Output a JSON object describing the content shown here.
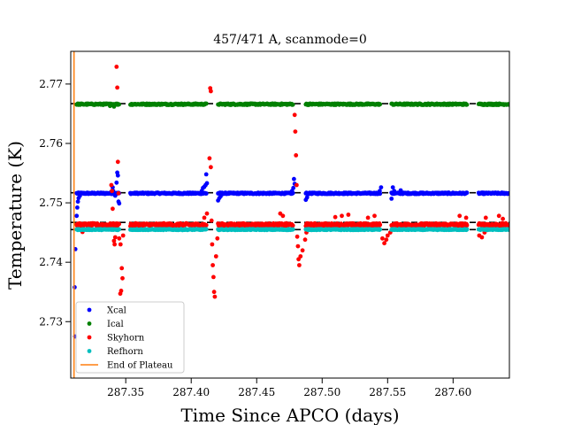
{
  "chart_data": {
    "type": "scatter",
    "title": "457/471 A, scanmode=0",
    "xlabel": "Time Since APCO (days)",
    "ylabel": "Temperature (K)",
    "xlim": [
      287.308,
      287.643
    ],
    "ylim": [
      2.7205,
      2.7755
    ],
    "xticks": [
      287.35,
      287.4,
      287.45,
      287.5,
      287.55,
      287.6
    ],
    "xtick_labels": [
      "287.35",
      "287.40",
      "287.45",
      "287.50",
      "287.55",
      "287.60"
    ],
    "yticks": [
      2.73,
      2.74,
      2.75,
      2.76,
      2.77
    ],
    "ytick_labels": [
      "2.73",
      "2.74",
      "2.75",
      "2.76",
      "2.77"
    ],
    "grid": false,
    "legend_position": "lower-left",
    "plateau_segments": [
      [
        287.3125,
        287.345
      ],
      [
        287.3535,
        287.412
      ],
      [
        287.4205,
        287.478
      ],
      [
        287.4875,
        287.5445
      ],
      [
        287.553,
        287.611
      ],
      [
        287.6195,
        287.643
      ]
    ],
    "reference_lines": [
      2.7667,
      2.7517,
      2.7467,
      2.7455
    ],
    "end_of_plateau_x": 287.3105,
    "series": [
      {
        "name": "Xcal",
        "color": "#0000ff",
        "level": 2.7516,
        "noise": 0.00012,
        "spikes": [
          {
            "x": 287.3115,
            "y": 2.7422
          },
          {
            "x": 287.311,
            "y": 2.7358
          },
          {
            "x": 287.3113,
            "y": 2.7275
          },
          {
            "x": 287.3125,
            "y": 2.7478
          },
          {
            "x": 287.313,
            "y": 2.7492
          },
          {
            "x": 287.3135,
            "y": 2.7502
          },
          {
            "x": 287.314,
            "y": 2.7508
          },
          {
            "x": 287.315,
            "y": 2.7512
          },
          {
            "x": 287.3395,
            "y": 2.752
          },
          {
            "x": 287.34,
            "y": 2.7526
          },
          {
            "x": 287.3405,
            "y": 2.752
          },
          {
            "x": 287.342,
            "y": 2.7512
          },
          {
            "x": 287.343,
            "y": 2.7534
          },
          {
            "x": 287.3435,
            "y": 2.7551
          },
          {
            "x": 287.344,
            "y": 2.7546
          },
          {
            "x": 287.3445,
            "y": 2.7502
          },
          {
            "x": 287.345,
            "y": 2.7499
          },
          {
            "x": 287.408,
            "y": 2.752
          },
          {
            "x": 287.409,
            "y": 2.7525
          },
          {
            "x": 287.41,
            "y": 2.7527
          },
          {
            "x": 287.411,
            "y": 2.753
          },
          {
            "x": 287.4115,
            "y": 2.7548
          },
          {
            "x": 287.412,
            "y": 2.7533
          },
          {
            "x": 287.4205,
            "y": 2.7504
          },
          {
            "x": 287.4215,
            "y": 2.7508
          },
          {
            "x": 287.4225,
            "y": 2.7511
          },
          {
            "x": 287.477,
            "y": 2.752
          },
          {
            "x": 287.478,
            "y": 2.7525
          },
          {
            "x": 287.4785,
            "y": 2.754
          },
          {
            "x": 287.479,
            "y": 2.7532
          },
          {
            "x": 287.4875,
            "y": 2.7505
          },
          {
            "x": 287.4885,
            "y": 2.7509
          },
          {
            "x": 287.544,
            "y": 2.752
          },
          {
            "x": 287.545,
            "y": 2.7526
          },
          {
            "x": 287.553,
            "y": 2.7507
          },
          {
            "x": 287.554,
            "y": 2.7526
          },
          {
            "x": 287.555,
            "y": 2.752
          },
          {
            "x": 287.56,
            "y": 2.7521
          }
        ]
      },
      {
        "name": "Ical",
        "color": "#008000",
        "level": 2.7666,
        "noise": 0.00012,
        "spikes": [
          {
            "x": 287.338,
            "y": 2.7663
          },
          {
            "x": 287.341,
            "y": 2.7662
          }
        ]
      },
      {
        "name": "Skyhorn",
        "color": "#ff0000",
        "level": 2.7463,
        "noise": 0.00025,
        "spikes": [
          {
            "x": 287.316,
            "y": 2.7455
          },
          {
            "x": 287.317,
            "y": 2.7451
          },
          {
            "x": 287.339,
            "y": 2.753
          },
          {
            "x": 287.3395,
            "y": 2.752
          },
          {
            "x": 287.34,
            "y": 2.749
          },
          {
            "x": 287.341,
            "y": 2.7436
          },
          {
            "x": 287.3415,
            "y": 2.743
          },
          {
            "x": 287.342,
            "y": 2.7442
          },
          {
            "x": 287.343,
            "y": 2.7729
          },
          {
            "x": 287.3435,
            "y": 2.7694
          },
          {
            "x": 287.344,
            "y": 2.7569
          },
          {
            "x": 287.3445,
            "y": 2.7516
          },
          {
            "x": 287.345,
            "y": 2.744
          },
          {
            "x": 287.346,
            "y": 2.743
          },
          {
            "x": 287.347,
            "y": 2.739
          },
          {
            "x": 287.3475,
            "y": 2.7373
          },
          {
            "x": 287.3465,
            "y": 2.7352
          },
          {
            "x": 287.3458,
            "y": 2.7347
          },
          {
            "x": 287.348,
            "y": 2.7445
          },
          {
            "x": 287.41,
            "y": 2.7475
          },
          {
            "x": 287.412,
            "y": 2.7482
          },
          {
            "x": 287.4145,
            "y": 2.7693
          },
          {
            "x": 287.415,
            "y": 2.7688
          },
          {
            "x": 287.414,
            "y": 2.7575
          },
          {
            "x": 287.415,
            "y": 2.756
          },
          {
            "x": 287.4155,
            "y": 2.747
          },
          {
            "x": 287.416,
            "y": 2.743
          },
          {
            "x": 287.4165,
            "y": 2.7395
          },
          {
            "x": 287.417,
            "y": 2.7375
          },
          {
            "x": 287.4175,
            "y": 2.735
          },
          {
            "x": 287.418,
            "y": 2.7342
          },
          {
            "x": 287.419,
            "y": 2.741
          },
          {
            "x": 287.42,
            "y": 2.744
          },
          {
            "x": 287.468,
            "y": 2.7482
          },
          {
            "x": 287.47,
            "y": 2.7478
          },
          {
            "x": 287.479,
            "y": 2.7648
          },
          {
            "x": 287.4795,
            "y": 2.762
          },
          {
            "x": 287.48,
            "y": 2.758
          },
          {
            "x": 287.4805,
            "y": 2.753
          },
          {
            "x": 287.481,
            "y": 2.7443
          },
          {
            "x": 287.4815,
            "y": 2.7427
          },
          {
            "x": 287.482,
            "y": 2.7405
          },
          {
            "x": 287.4825,
            "y": 2.7395
          },
          {
            "x": 287.4835,
            "y": 2.741
          },
          {
            "x": 287.485,
            "y": 2.742
          },
          {
            "x": 287.487,
            "y": 2.7438
          },
          {
            "x": 287.488,
            "y": 2.745
          },
          {
            "x": 287.51,
            "y": 2.7476
          },
          {
            "x": 287.515,
            "y": 2.7478
          },
          {
            "x": 287.52,
            "y": 2.748
          },
          {
            "x": 287.535,
            "y": 2.7475
          },
          {
            "x": 287.54,
            "y": 2.7478
          },
          {
            "x": 287.546,
            "y": 2.744
          },
          {
            "x": 287.5475,
            "y": 2.7432
          },
          {
            "x": 287.549,
            "y": 2.7438
          },
          {
            "x": 287.55,
            "y": 2.7445
          },
          {
            "x": 287.552,
            "y": 2.745
          },
          {
            "x": 287.605,
            "y": 2.7478
          },
          {
            "x": 287.61,
            "y": 2.7475
          },
          {
            "x": 287.62,
            "y": 2.7445
          },
          {
            "x": 287.622,
            "y": 2.7442
          },
          {
            "x": 287.624,
            "y": 2.745
          },
          {
            "x": 287.625,
            "y": 2.7475
          },
          {
            "x": 287.635,
            "y": 2.7478
          },
          {
            "x": 287.638,
            "y": 2.7473
          }
        ]
      },
      {
        "name": "Refhorn",
        "color": "#00bfbf",
        "level": 2.7455,
        "noise": 8e-05,
        "spikes": []
      },
      {
        "name": "End of Plateau",
        "color": "#ff7f0e",
        "kind": "vline"
      }
    ]
  }
}
